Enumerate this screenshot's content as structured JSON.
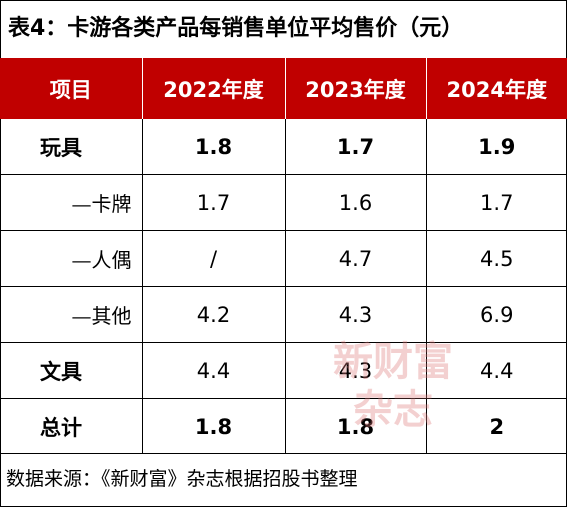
{
  "title": "表4：卡游各类产品每销售单位平均售价（元）",
  "headers": [
    "项目",
    "2022年度",
    "2023年度",
    "2024年度"
  ],
  "rows": [
    {
      "label": "玩具",
      "v2022": "1.8",
      "v2023": "1.7",
      "v2024": "1.9"
    },
    {
      "label": "—卡牌",
      "v2022": "1.7",
      "v2023": "1.6",
      "v2024": "1.7"
    },
    {
      "label": "—人偶",
      "v2022": "/",
      "v2023": "4.7",
      "v2024": "4.5"
    },
    {
      "label": "—其他",
      "v2022": "4.2",
      "v2023": "4.3",
      "v2024": "6.9"
    },
    {
      "label": "文具",
      "v2022": "4.4",
      "v2023": "4.3",
      "v2024": "4.4"
    },
    {
      "label": "总计",
      "v2022": "1.8",
      "v2023": "1.8",
      "v2024": "2"
    }
  ],
  "footer": "数据来源：《新财富》杂志根据招股书整理",
  "watermark": {
    "line1": "新财富",
    "line2": "杂志"
  },
  "colors": {
    "header_bg": "#c00000",
    "header_text": "#ffffff"
  }
}
